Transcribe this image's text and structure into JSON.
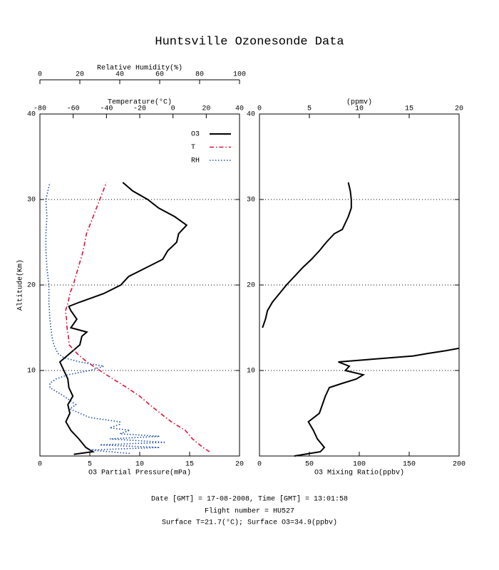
{
  "title": "Huntsville Ozonesonde Data",
  "footer": {
    "line1": "Date [GMT] = 17-08-2008,  Time [GMT] = 13:01:58",
    "line2": "Flight number = HU527",
    "line3": "Surface T=21.7(°C); Surface O3=34.9(ppbv)"
  },
  "chart_data": [
    {
      "type": "line",
      "ylabel": "Altitude(Km)",
      "ylim": [
        0,
        40
      ],
      "yticks": [
        10,
        20,
        30,
        40
      ],
      "grid": true,
      "legend": "upper right",
      "xlabel": "O3 Partial Pressure(mPa)",
      "xlim": [
        0,
        20
      ],
      "xticks": [
        0,
        5,
        10,
        15,
        20
      ],
      "x2label": "Temperature(°C)",
      "x2lim": [
        -80,
        40
      ],
      "x2ticks": [
        -80,
        -60,
        -40,
        -20,
        0,
        20,
        40
      ],
      "x3label": "Relative Humidity(%)",
      "x3lim": [
        0,
        100
      ],
      "x3ticks": [
        0,
        20,
        40,
        60,
        80,
        100
      ],
      "series": [
        {
          "name": "O3",
          "color": "#000000",
          "style": "solid",
          "axis": "x",
          "y": [
            0.2,
            0.5,
            1,
            2,
            3,
            4,
            5,
            6,
            7,
            8,
            9,
            10,
            11,
            12,
            13,
            14,
            14.5,
            15,
            16,
            17,
            17.5,
            18,
            19,
            20,
            21,
            22,
            23,
            24,
            25,
            26,
            27,
            28,
            29,
            30,
            31,
            32
          ],
          "values": [
            3.4,
            5.3,
            4.6,
            3.9,
            3.1,
            2.6,
            3.0,
            2.8,
            3.3,
            2.9,
            2.8,
            2.4,
            2.0,
            3.0,
            4.0,
            4.2,
            4.7,
            3.1,
            3.7,
            3.1,
            2.9,
            4.0,
            6.4,
            8.1,
            8.9,
            10.6,
            12.3,
            12.8,
            13.7,
            13.9,
            14.7,
            13.5,
            11.9,
            10.8,
            9.3,
            8.3
          ]
        },
        {
          "name": "T",
          "color": "#e0103a",
          "style": "dashdot",
          "axis": "x2",
          "y": [
            0.5,
            1,
            2,
            3,
            4,
            5,
            6,
            7,
            8,
            9,
            10,
            11,
            12,
            13,
            14,
            15,
            16,
            17,
            18,
            19,
            20,
            22,
            24,
            26,
            28,
            30,
            31,
            32
          ],
          "values": [
            22,
            18,
            11.7,
            7.4,
            -1,
            -7.6,
            -14,
            -20,
            -27.7,
            -36,
            -44,
            -51.7,
            -57.7,
            -62.4,
            -62.9,
            -63.7,
            -64,
            -64.6,
            -63,
            -62,
            -60,
            -57,
            -54,
            -52,
            -48,
            -44,
            -42,
            -40
          ]
        },
        {
          "name": "RH",
          "color": "#1f4fa8",
          "style": "dotted",
          "axis": "x3",
          "y": [
            0.3,
            0.7,
            1,
            1.3,
            1.6,
            2,
            2.3,
            2.6,
            3,
            3.3,
            3.7,
            4,
            4.5,
            5,
            5.5,
            6,
            7,
            8,
            8.5,
            9,
            9.5,
            10,
            10.5,
            11,
            11.5,
            12,
            13,
            14,
            15,
            16,
            18,
            20,
            22,
            24,
            26,
            28,
            30,
            31,
            32
          ],
          "values": [
            45,
            25,
            60,
            30,
            63,
            35,
            60,
            40,
            45,
            35,
            40,
            40,
            25,
            20,
            15,
            18,
            12,
            5,
            5,
            8,
            14,
            25,
            32,
            20,
            12,
            9,
            7,
            6,
            5.5,
            5,
            4.5,
            4.5,
            3.5,
            3,
            3,
            3.5,
            3,
            4,
            5
          ]
        }
      ]
    },
    {
      "type": "line",
      "ylim": [
        0,
        40
      ],
      "yticks": [
        10,
        20,
        30,
        40
      ],
      "grid": true,
      "xlabel": "O3 Mixing Ratio(ppbv)",
      "xlim": [
        0,
        200
      ],
      "xticks": [
        0,
        50,
        100,
        150,
        200
      ],
      "x2label": "(ppmv)",
      "x2lim": [
        0,
        20
      ],
      "x2ticks": [
        0,
        5,
        10,
        15,
        20
      ],
      "series": [
        {
          "color": "#000000",
          "style": "solid",
          "axis": "x",
          "y": [
            0,
            0.5,
            1,
            2,
            3,
            4,
            5,
            6,
            7,
            8,
            8.5,
            9,
            9.5,
            10,
            10.5,
            11,
            11.3,
            11.7,
            12,
            12.3,
            12.6
          ],
          "values": [
            34.9,
            61,
            65,
            58,
            54,
            49,
            60,
            63,
            66,
            70,
            83,
            97,
            104,
            86,
            90,
            79,
            111,
            154,
            169,
            186,
            200
          ]
        },
        {
          "color": "#000000",
          "style": "solid",
          "axis": "x2",
          "y": [
            15,
            16,
            17,
            18,
            19,
            20,
            21,
            22,
            23,
            24,
            25,
            26,
            26.5,
            27,
            28,
            29,
            30,
            31,
            32
          ],
          "values": [
            0.3,
            0.6,
            0.8,
            1.3,
            2.0,
            2.7,
            3.5,
            4.3,
            5.2,
            6.0,
            6.7,
            7.5,
            8.3,
            8.5,
            8.9,
            9.2,
            9.2,
            9.1,
            8.9
          ]
        }
      ]
    }
  ]
}
